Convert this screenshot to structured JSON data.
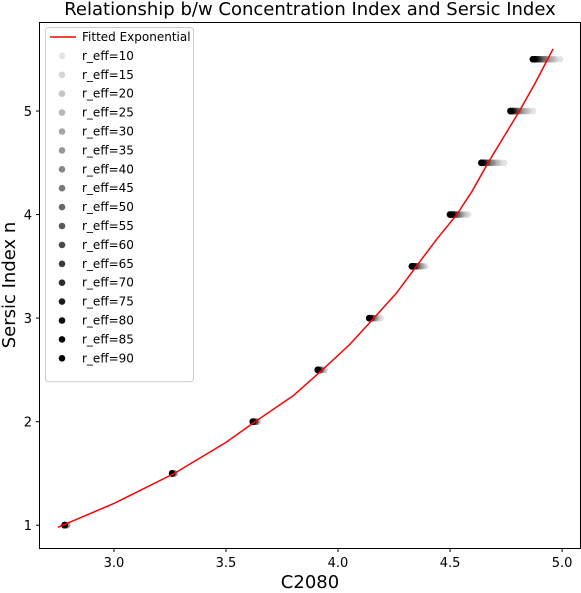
{
  "chart_data": {
    "type": "scatter",
    "title": "Relationship b/w Concentration Index and Sersic Index",
    "xlabel": "C2080",
    "ylabel": "Sersic Index n",
    "xlim": [
      2.67,
      5.08
    ],
    "ylim": [
      0.78,
      5.85
    ],
    "xticks": [
      3.0,
      3.5,
      4.0,
      4.5,
      5.0
    ],
    "xtick_labels": [
      "3.0",
      "3.5",
      "4.0",
      "4.5",
      "5.0"
    ],
    "yticks": [
      1,
      2,
      3,
      4,
      5
    ],
    "ytick_labels": [
      "1",
      "2",
      "3",
      "4",
      "5"
    ],
    "grid": false,
    "legend_position": "upper-left",
    "fit_line": {
      "name": "Fitted Exponential",
      "color": "#ff0000",
      "x": [
        2.75,
        3.0,
        3.27,
        3.5,
        3.63,
        3.8,
        3.93,
        4.05,
        4.16,
        4.26,
        4.35,
        4.44,
        4.53,
        4.6,
        4.67,
        4.74,
        4.81,
        4.88,
        4.96
      ],
      "y": [
        0.98,
        1.21,
        1.5,
        1.8,
        2.0,
        2.25,
        2.5,
        2.74,
        3.0,
        3.24,
        3.5,
        3.76,
        4.0,
        4.23,
        4.5,
        4.75,
        5.0,
        5.27,
        5.6
      ]
    },
    "n_levels": [
      1.0,
      1.5,
      2.0,
      2.5,
      3.0,
      3.5,
      4.0,
      4.5,
      5.0,
      5.5
    ],
    "series": [
      {
        "name": "r_eff=10",
        "color": "#e3e3e3",
        "x": [
          2.79,
          3.27,
          3.64,
          3.94,
          4.19,
          4.39,
          4.58,
          4.74,
          4.87,
          4.99
        ],
        "y": [
          1.0,
          1.5,
          2.0,
          2.5,
          3.0,
          3.5,
          4.0,
          4.5,
          5.0,
          5.5
        ]
      },
      {
        "name": "r_eff=15",
        "color": "#d4d4d4",
        "x": [
          2.79,
          3.27,
          3.64,
          3.94,
          4.18,
          4.38,
          4.57,
          4.72,
          4.85,
          4.97
        ],
        "y": [
          1.0,
          1.5,
          2.0,
          2.5,
          3.0,
          3.5,
          4.0,
          4.5,
          5.0,
          5.5
        ]
      },
      {
        "name": "r_eff=20",
        "color": "#c4c4c4",
        "x": [
          2.79,
          3.27,
          3.64,
          3.93,
          4.17,
          4.38,
          4.56,
          4.71,
          4.84,
          4.96
        ],
        "y": [
          1.0,
          1.5,
          2.0,
          2.5,
          3.0,
          3.5,
          4.0,
          4.5,
          5.0,
          5.5
        ]
      },
      {
        "name": "r_eff=25",
        "color": "#b5b5b5",
        "x": [
          2.79,
          3.27,
          3.64,
          3.93,
          4.17,
          4.37,
          4.55,
          4.7,
          4.83,
          4.95
        ],
        "y": [
          1.0,
          1.5,
          2.0,
          2.5,
          3.0,
          3.5,
          4.0,
          4.5,
          5.0,
          5.5
        ]
      },
      {
        "name": "r_eff=30",
        "color": "#a5a5a5",
        "x": [
          2.79,
          3.27,
          3.63,
          3.93,
          4.16,
          4.37,
          4.55,
          4.69,
          4.82,
          4.94
        ],
        "y": [
          1.0,
          1.5,
          2.0,
          2.5,
          3.0,
          3.5,
          4.0,
          4.5,
          5.0,
          5.5
        ]
      },
      {
        "name": "r_eff=35",
        "color": "#969696",
        "x": [
          2.79,
          3.27,
          3.63,
          3.92,
          4.16,
          4.36,
          4.54,
          4.69,
          4.81,
          4.93
        ],
        "y": [
          1.0,
          1.5,
          2.0,
          2.5,
          3.0,
          3.5,
          4.0,
          4.5,
          5.0,
          5.5
        ]
      },
      {
        "name": "r_eff=40",
        "color": "#878787",
        "x": [
          2.78,
          3.26,
          3.63,
          3.92,
          4.16,
          4.36,
          4.54,
          4.68,
          4.81,
          4.92
        ],
        "y": [
          1.0,
          1.5,
          2.0,
          2.5,
          3.0,
          3.5,
          4.0,
          4.5,
          5.0,
          5.5
        ]
      },
      {
        "name": "r_eff=45",
        "color": "#777777",
        "x": [
          2.78,
          3.26,
          3.63,
          3.92,
          4.15,
          4.35,
          4.53,
          4.67,
          4.8,
          4.92
        ],
        "y": [
          1.0,
          1.5,
          2.0,
          2.5,
          3.0,
          3.5,
          4.0,
          4.5,
          5.0,
          5.5
        ]
      },
      {
        "name": "r_eff=50",
        "color": "#686868",
        "x": [
          2.78,
          3.26,
          3.63,
          3.92,
          4.15,
          4.35,
          4.53,
          4.67,
          4.8,
          4.91
        ],
        "y": [
          1.0,
          1.5,
          2.0,
          2.5,
          3.0,
          3.5,
          4.0,
          4.5,
          5.0,
          5.5
        ]
      },
      {
        "name": "r_eff=55",
        "color": "#595959",
        "x": [
          2.78,
          3.26,
          3.63,
          3.92,
          4.15,
          4.35,
          4.52,
          4.66,
          4.79,
          4.9
        ],
        "y": [
          1.0,
          1.5,
          2.0,
          2.5,
          3.0,
          3.5,
          4.0,
          4.5,
          5.0,
          5.5
        ]
      },
      {
        "name": "r_eff=60",
        "color": "#494949",
        "x": [
          2.78,
          3.26,
          3.63,
          3.92,
          4.15,
          4.34,
          4.52,
          4.66,
          4.79,
          4.9
        ],
        "y": [
          1.0,
          1.5,
          2.0,
          2.5,
          3.0,
          3.5,
          4.0,
          4.5,
          5.0,
          5.5
        ]
      },
      {
        "name": "r_eff=65",
        "color": "#3a3a3a",
        "x": [
          2.78,
          3.26,
          3.62,
          3.91,
          4.15,
          4.34,
          4.52,
          4.65,
          4.78,
          4.89
        ],
        "y": [
          1.0,
          1.5,
          2.0,
          2.5,
          3.0,
          3.5,
          4.0,
          4.5,
          5.0,
          5.5
        ]
      },
      {
        "name": "r_eff=70",
        "color": "#2b2b2b",
        "x": [
          2.78,
          3.26,
          3.62,
          3.91,
          4.14,
          4.34,
          4.51,
          4.65,
          4.78,
          4.89
        ],
        "y": [
          1.0,
          1.5,
          2.0,
          2.5,
          3.0,
          3.5,
          4.0,
          4.5,
          5.0,
          5.5
        ]
      },
      {
        "name": "r_eff=75",
        "color": "#1b1b1b",
        "x": [
          2.78,
          3.26,
          3.62,
          3.91,
          4.14,
          4.34,
          4.51,
          4.65,
          4.78,
          4.88
        ],
        "y": [
          1.0,
          1.5,
          2.0,
          2.5,
          3.0,
          3.5,
          4.0,
          4.5,
          5.0,
          5.5
        ]
      },
      {
        "name": "r_eff=80",
        "color": "#0c0c0c",
        "x": [
          2.78,
          3.26,
          3.62,
          3.91,
          4.14,
          4.33,
          4.51,
          4.64,
          4.77,
          4.88
        ],
        "y": [
          1.0,
          1.5,
          2.0,
          2.5,
          3.0,
          3.5,
          4.0,
          4.5,
          5.0,
          5.5
        ]
      },
      {
        "name": "r_eff=85",
        "color": "#030303",
        "x": [
          2.78,
          3.26,
          3.62,
          3.91,
          4.14,
          4.33,
          4.5,
          4.64,
          4.77,
          4.87
        ],
        "y": [
          1.0,
          1.5,
          2.0,
          2.5,
          3.0,
          3.5,
          4.0,
          4.5,
          5.0,
          5.5
        ]
      },
      {
        "name": "r_eff=90",
        "color": "#000000",
        "x": [
          2.78,
          3.26,
          3.62,
          3.91,
          4.14,
          4.33,
          4.5,
          4.64,
          4.77,
          4.87
        ],
        "y": [
          1.0,
          1.5,
          2.0,
          2.5,
          3.0,
          3.5,
          4.0,
          4.5,
          5.0,
          5.5
        ]
      }
    ]
  }
}
